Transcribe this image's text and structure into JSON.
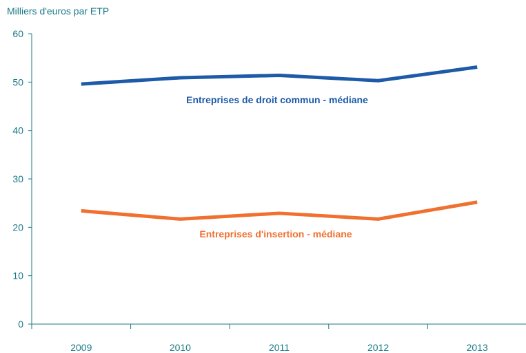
{
  "chart_data": {
    "type": "line",
    "ylabel": "Milliers d'euros par ETP",
    "xlabel": "",
    "categories": [
      "2009",
      "2010",
      "2011",
      "2012",
      "2013"
    ],
    "ylim": [
      0,
      60
    ],
    "yticks": [
      0,
      10,
      20,
      30,
      40,
      50,
      60
    ],
    "grid": false,
    "series": [
      {
        "name": "Entreprises de droit commun - médiane",
        "values": [
          49.6,
          50.9,
          51.4,
          50.3,
          53.1
        ],
        "color": "#1d5aa8"
      },
      {
        "name": "Entreprises d'insertion - médiane",
        "values": [
          23.4,
          21.7,
          22.9,
          21.7,
          25.2
        ],
        "color": "#f07030"
      }
    ],
    "axis_color": "#1a7a86"
  }
}
